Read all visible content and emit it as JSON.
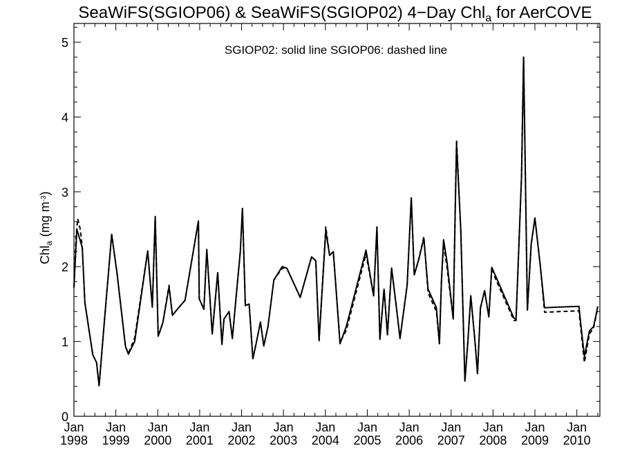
{
  "chart_data": {
    "type": "line",
    "title": {
      "main": "SeaWiFS(SGIOP06) & SeaWiFS(SGIOP02) 4−Day Chl",
      "sub": "a",
      "tail": " for AerCOVE"
    },
    "ylabel": {
      "main": "Chl",
      "sub": "a",
      "unit": "(mg m",
      "sup": "-3",
      "close": ")"
    },
    "xlabel": "",
    "annotation": "SGIOP02: solid line   SGIOP06: dashed line",
    "xlim": [
      1998.0,
      2010.55
    ],
    "ylim": [
      0,
      5.25
    ],
    "y_ticks": [
      {
        "value": 0,
        "label": "0"
      },
      {
        "value": 1,
        "label": "1"
      },
      {
        "value": 2,
        "label": "2"
      },
      {
        "value": 3,
        "label": "3"
      },
      {
        "value": 4,
        "label": "4"
      },
      {
        "value": 5,
        "label": "5"
      }
    ],
    "x_ticks": [
      {
        "value": 1998,
        "label_top": "Jan",
        "label_bottom": "1998"
      },
      {
        "value": 1999,
        "label_top": "Jan",
        "label_bottom": "1999"
      },
      {
        "value": 2000,
        "label_top": "Jan",
        "label_bottom": "2000"
      },
      {
        "value": 2001,
        "label_top": "Jan",
        "label_bottom": "2001"
      },
      {
        "value": 2002,
        "label_top": "Jan",
        "label_bottom": "2002"
      },
      {
        "value": 2003,
        "label_top": "Jan",
        "label_bottom": "2003"
      },
      {
        "value": 2004,
        "label_top": "Jan",
        "label_bottom": "2004"
      },
      {
        "value": 2005,
        "label_top": "Jan",
        "label_bottom": "2005"
      },
      {
        "value": 2006,
        "label_top": "Jan",
        "label_bottom": "2006"
      },
      {
        "value": 2007,
        "label_top": "Jan",
        "label_bottom": "2007"
      },
      {
        "value": 2008,
        "label_top": "Jan",
        "label_bottom": "2008"
      },
      {
        "value": 2009,
        "label_top": "Jan",
        "label_bottom": "2009"
      },
      {
        "value": 2010,
        "label_top": "Jan",
        "label_bottom": "2010"
      }
    ],
    "grid": false,
    "series": [
      {
        "style": "solid",
        "color": "#000000",
        "points": [
          [
            1998.0,
            1.72
          ],
          [
            1998.07,
            2.5
          ],
          [
            1998.15,
            2.35
          ],
          [
            1998.2,
            2.25
          ],
          [
            1998.26,
            1.52
          ],
          [
            1998.45,
            0.82
          ],
          [
            1998.54,
            0.72
          ],
          [
            1998.6,
            0.41
          ],
          [
            1998.73,
            1.3
          ],
          [
            1998.9,
            2.43
          ],
          [
            1999.03,
            1.9
          ],
          [
            1999.23,
            0.93
          ],
          [
            1999.3,
            0.83
          ],
          [
            1999.45,
            1.0
          ],
          [
            1999.76,
            2.21
          ],
          [
            1999.87,
            1.46
          ],
          [
            1999.94,
            2.67
          ],
          [
            2000.01,
            1.07
          ],
          [
            2000.12,
            1.25
          ],
          [
            2000.27,
            1.73
          ],
          [
            2000.35,
            1.35
          ],
          [
            2000.45,
            1.42
          ],
          [
            2000.65,
            1.55
          ],
          [
            2000.97,
            2.61
          ],
          [
            2000.99,
            1.57
          ],
          [
            2001.1,
            1.43
          ],
          [
            2001.17,
            2.23
          ],
          [
            2001.3,
            1.1
          ],
          [
            2001.43,
            1.92
          ],
          [
            2001.53,
            0.96
          ],
          [
            2001.58,
            1.3
          ],
          [
            2001.7,
            1.4
          ],
          [
            2001.78,
            1.04
          ],
          [
            2001.87,
            1.6
          ],
          [
            2001.97,
            2.2
          ],
          [
            2002.02,
            2.78
          ],
          [
            2002.09,
            1.48
          ],
          [
            2002.18,
            1.5
          ],
          [
            2002.27,
            0.77
          ],
          [
            2002.35,
            0.98
          ],
          [
            2002.45,
            1.26
          ],
          [
            2002.53,
            0.94
          ],
          [
            2002.63,
            1.2
          ],
          [
            2002.77,
            1.82
          ],
          [
            2002.97,
            2.0
          ],
          [
            2003.08,
            1.98
          ],
          [
            2003.4,
            1.59
          ],
          [
            2003.67,
            2.13
          ],
          [
            2003.77,
            2.08
          ],
          [
            2003.85,
            1.01
          ],
          [
            2004.01,
            2.48
          ],
          [
            2004.1,
            2.15
          ],
          [
            2004.19,
            2.2
          ],
          [
            2004.35,
            0.97
          ],
          [
            2004.5,
            1.2
          ],
          [
            2004.97,
            2.22
          ],
          [
            2005.15,
            1.61
          ],
          [
            2005.23,
            2.53
          ],
          [
            2005.3,
            1.03
          ],
          [
            2005.4,
            1.7
          ],
          [
            2005.48,
            1.09
          ],
          [
            2005.58,
            1.98
          ],
          [
            2005.7,
            1.43
          ],
          [
            2005.78,
            1.04
          ],
          [
            2005.95,
            1.75
          ],
          [
            2006.05,
            2.92
          ],
          [
            2006.12,
            1.89
          ],
          [
            2006.23,
            2.1
          ],
          [
            2006.35,
            2.38
          ],
          [
            2006.45,
            1.7
          ],
          [
            2006.65,
            1.45
          ],
          [
            2006.72,
            0.97
          ],
          [
            2006.77,
            1.82
          ],
          [
            2006.82,
            2.36
          ],
          [
            2006.9,
            2.07
          ],
          [
            2007.05,
            1.3
          ],
          [
            2007.1,
            2.8
          ],
          [
            2007.13,
            3.63
          ],
          [
            2007.23,
            2.5
          ],
          [
            2007.33,
            0.47
          ],
          [
            2007.4,
            1.0
          ],
          [
            2007.47,
            1.61
          ],
          [
            2007.57,
            1.0
          ],
          [
            2007.63,
            0.57
          ],
          [
            2007.7,
            1.45
          ],
          [
            2007.8,
            1.68
          ],
          [
            2007.9,
            1.33
          ],
          [
            2007.97,
            1.99
          ],
          [
            2008.05,
            1.89
          ],
          [
            2008.5,
            1.31
          ],
          [
            2008.55,
            1.3
          ],
          [
            2008.68,
            3.2
          ],
          [
            2008.73,
            4.8
          ],
          [
            2008.82,
            1.42
          ],
          [
            2008.91,
            2.3
          ],
          [
            2009.0,
            2.65
          ],
          [
            2009.13,
            2.0
          ],
          [
            2009.23,
            1.45
          ],
          [
            2009.6,
            1.46
          ],
          [
            2010.05,
            1.47
          ],
          [
            2010.1,
            1.2
          ],
          [
            2010.18,
            0.8
          ],
          [
            2010.3,
            1.14
          ],
          [
            2010.4,
            1.2
          ],
          [
            2010.5,
            1.47
          ]
        ]
      },
      {
        "style": "dashed",
        "color": "#000000",
        "points": [
          [
            1998.0,
            1.72
          ],
          [
            1998.05,
            2.4
          ],
          [
            1998.09,
            2.64
          ],
          [
            1998.15,
            2.5
          ],
          [
            1998.2,
            2.25
          ],
          [
            1998.26,
            1.52
          ],
          [
            1998.45,
            0.82
          ],
          [
            1998.54,
            0.72
          ],
          [
            1998.6,
            0.41
          ],
          [
            1998.73,
            1.3
          ],
          [
            1998.9,
            2.43
          ],
          [
            1999.03,
            1.9
          ],
          [
            1999.23,
            0.93
          ],
          [
            1999.3,
            0.84
          ],
          [
            1999.45,
            1.05
          ],
          [
            1999.76,
            2.21
          ],
          [
            1999.87,
            1.46
          ],
          [
            1999.94,
            2.67
          ],
          [
            2000.01,
            1.07
          ],
          [
            2000.12,
            1.25
          ],
          [
            2000.27,
            1.75
          ],
          [
            2000.35,
            1.35
          ],
          [
            2000.45,
            1.42
          ],
          [
            2000.65,
            1.55
          ],
          [
            2000.97,
            2.61
          ],
          [
            2000.99,
            1.57
          ],
          [
            2001.1,
            1.43
          ],
          [
            2001.17,
            2.23
          ],
          [
            2001.3,
            1.1
          ],
          [
            2001.43,
            1.92
          ],
          [
            2001.53,
            0.97
          ],
          [
            2001.58,
            1.3
          ],
          [
            2001.7,
            1.4
          ],
          [
            2001.78,
            1.04
          ],
          [
            2001.87,
            1.6
          ],
          [
            2001.97,
            2.2
          ],
          [
            2002.02,
            2.78
          ],
          [
            2002.09,
            1.48
          ],
          [
            2002.18,
            1.5
          ],
          [
            2002.27,
            0.77
          ],
          [
            2002.35,
            0.98
          ],
          [
            2002.45,
            1.26
          ],
          [
            2002.53,
            0.94
          ],
          [
            2002.63,
            1.2
          ],
          [
            2002.77,
            1.82
          ],
          [
            2002.97,
            1.98
          ],
          [
            2003.08,
            1.98
          ],
          [
            2003.4,
            1.59
          ],
          [
            2003.67,
            2.13
          ],
          [
            2003.77,
            2.08
          ],
          [
            2003.85,
            1.01
          ],
          [
            2004.01,
            2.53
          ],
          [
            2004.1,
            2.15
          ],
          [
            2004.19,
            2.2
          ],
          [
            2004.35,
            0.99
          ],
          [
            2004.5,
            1.15
          ],
          [
            2004.97,
            2.17
          ],
          [
            2005.15,
            1.61
          ],
          [
            2005.23,
            2.53
          ],
          [
            2005.3,
            1.03
          ],
          [
            2005.4,
            1.7
          ],
          [
            2005.48,
            1.09
          ],
          [
            2005.58,
            1.98
          ],
          [
            2005.7,
            1.43
          ],
          [
            2005.78,
            1.04
          ],
          [
            2005.95,
            1.75
          ],
          [
            2006.05,
            2.92
          ],
          [
            2006.12,
            1.89
          ],
          [
            2006.23,
            2.1
          ],
          [
            2006.35,
            2.4
          ],
          [
            2006.45,
            1.65
          ],
          [
            2006.65,
            1.4
          ],
          [
            2006.72,
            0.97
          ],
          [
            2006.77,
            1.82
          ],
          [
            2006.82,
            2.3
          ],
          [
            2006.9,
            2.0
          ],
          [
            2007.05,
            1.3
          ],
          [
            2007.1,
            2.85
          ],
          [
            2007.13,
            3.7
          ],
          [
            2007.23,
            2.5
          ],
          [
            2007.33,
            0.47
          ],
          [
            2007.4,
            1.0
          ],
          [
            2007.47,
            1.61
          ],
          [
            2007.57,
            1.0
          ],
          [
            2007.63,
            0.57
          ],
          [
            2007.7,
            1.45
          ],
          [
            2007.8,
            1.68
          ],
          [
            2007.9,
            1.33
          ],
          [
            2007.97,
            1.99
          ],
          [
            2008.05,
            1.85
          ],
          [
            2008.5,
            1.28
          ],
          [
            2008.55,
            1.28
          ],
          [
            2008.68,
            3.2
          ],
          [
            2008.73,
            4.8
          ],
          [
            2008.82,
            1.42
          ],
          [
            2008.91,
            2.3
          ],
          [
            2009.0,
            2.65
          ],
          [
            2009.13,
            2.0
          ],
          [
            2009.23,
            1.39
          ],
          [
            2009.6,
            1.4
          ],
          [
            2010.05,
            1.41
          ],
          [
            2010.1,
            1.15
          ],
          [
            2010.18,
            0.72
          ],
          [
            2010.3,
            1.1
          ],
          [
            2010.4,
            1.18
          ],
          [
            2010.5,
            1.45
          ]
        ]
      }
    ]
  }
}
